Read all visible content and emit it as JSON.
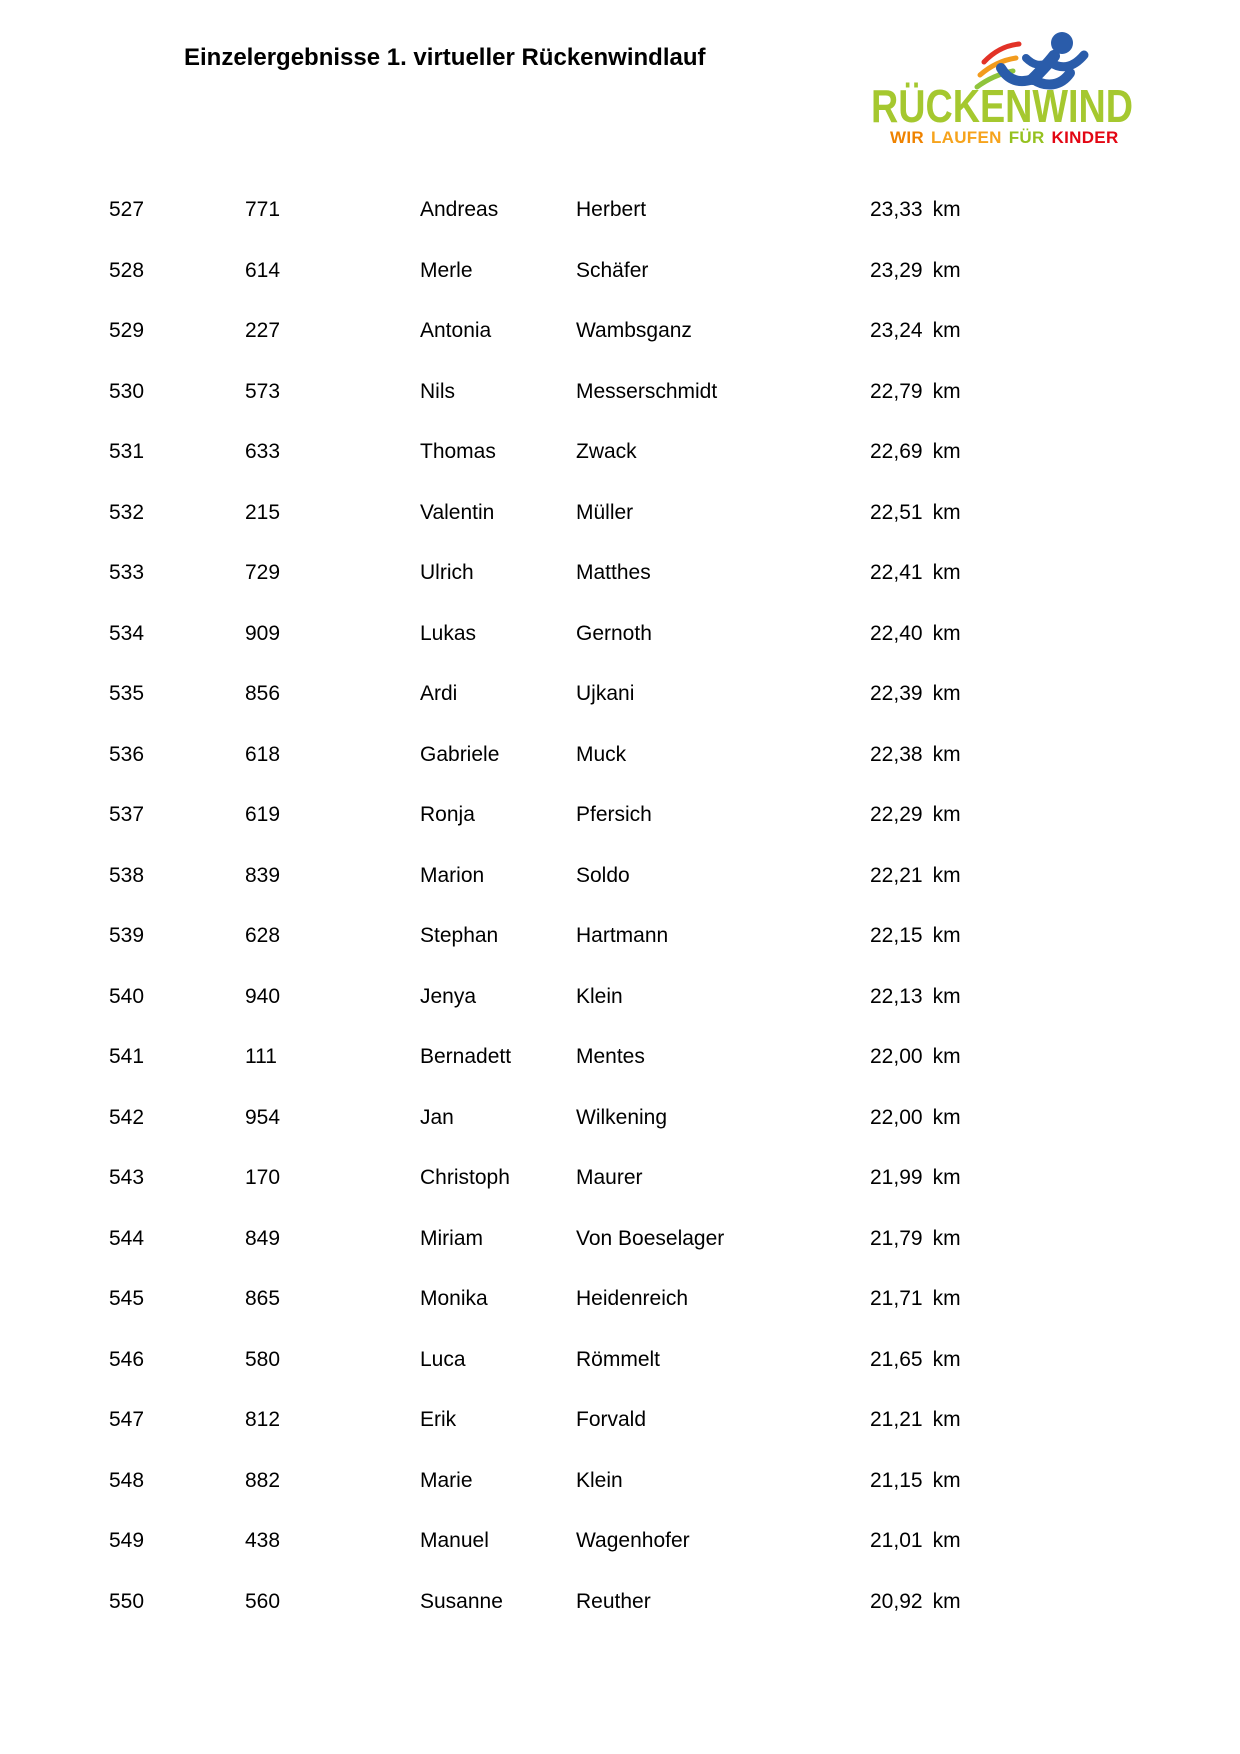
{
  "page": {
    "title": "Einzelergebnisse 1. virtueller Rückenwindlauf"
  },
  "logo": {
    "brand": "RÜCKENWIND",
    "brand_color": "#a5c82f",
    "runner_color": "#2a5caa",
    "speed_line_colors": [
      "#e23227",
      "#f29b1d",
      "#8fc43c"
    ],
    "tagline": [
      {
        "text": "WIR",
        "color": "#ef8200"
      },
      {
        "text": "LAUFEN",
        "color": "#f6a31c"
      },
      {
        "text": "FÜR",
        "color": "#95c11f"
      },
      {
        "text": "KINDER",
        "color": "#e30613"
      }
    ]
  },
  "table": {
    "distance_unit": "km",
    "rows": [
      {
        "rank": "527",
        "bib": "771",
        "first_name": "Andreas",
        "last_name": "Herbert",
        "distance": "23,33"
      },
      {
        "rank": "528",
        "bib": "614",
        "first_name": "Merle",
        "last_name": "Schäfer",
        "distance": "23,29"
      },
      {
        "rank": "529",
        "bib": "227",
        "first_name": "Antonia",
        "last_name": "Wambsganz",
        "distance": "23,24"
      },
      {
        "rank": "530",
        "bib": "573",
        "first_name": "Nils",
        "last_name": "Messerschmidt",
        "distance": "22,79"
      },
      {
        "rank": "531",
        "bib": "633",
        "first_name": "Thomas",
        "last_name": "Zwack",
        "distance": "22,69"
      },
      {
        "rank": "532",
        "bib": "215",
        "first_name": "Valentin",
        "last_name": "Müller",
        "distance": "22,51"
      },
      {
        "rank": "533",
        "bib": "729",
        "first_name": "Ulrich",
        "last_name": "Matthes",
        "distance": "22,41"
      },
      {
        "rank": "534",
        "bib": "909",
        "first_name": "Lukas",
        "last_name": "Gernoth",
        "distance": "22,40"
      },
      {
        "rank": "535",
        "bib": "856",
        "first_name": "Ardi",
        "last_name": "Ujkani",
        "distance": "22,39"
      },
      {
        "rank": "536",
        "bib": "618",
        "first_name": "Gabriele",
        "last_name": "Muck",
        "distance": "22,38"
      },
      {
        "rank": "537",
        "bib": "619",
        "first_name": "Ronja",
        "last_name": "Pfersich",
        "distance": "22,29"
      },
      {
        "rank": "538",
        "bib": "839",
        "first_name": "Marion",
        "last_name": "Soldo",
        "distance": "22,21"
      },
      {
        "rank": "539",
        "bib": "628",
        "first_name": "Stephan",
        "last_name": "Hartmann",
        "distance": "22,15"
      },
      {
        "rank": "540",
        "bib": "940",
        "first_name": "Jenya",
        "last_name": "Klein",
        "distance": "22,13"
      },
      {
        "rank": "541",
        "bib": "111",
        "first_name": "Bernadett",
        "last_name": "Mentes",
        "distance": "22,00"
      },
      {
        "rank": "542",
        "bib": "954",
        "first_name": "Jan",
        "last_name": "Wilkening",
        "distance": "22,00"
      },
      {
        "rank": "543",
        "bib": "170",
        "first_name": "Christoph",
        "last_name": "Maurer",
        "distance": "21,99"
      },
      {
        "rank": "544",
        "bib": "849",
        "first_name": "Miriam",
        "last_name": "Von Boeselager",
        "distance": "21,79"
      },
      {
        "rank": "545",
        "bib": "865",
        "first_name": "Monika",
        "last_name": "Heidenreich",
        "distance": "21,71"
      },
      {
        "rank": "546",
        "bib": "580",
        "first_name": "Luca",
        "last_name": "Römmelt",
        "distance": "21,65"
      },
      {
        "rank": "547",
        "bib": "812",
        "first_name": "Erik",
        "last_name": "Forvald",
        "distance": "21,21"
      },
      {
        "rank": "548",
        "bib": "882",
        "first_name": "Marie",
        "last_name": "Klein",
        "distance": "21,15"
      },
      {
        "rank": "549",
        "bib": "438",
        "first_name": "Manuel",
        "last_name": "Wagenhofer",
        "distance": "21,01"
      },
      {
        "rank": "550",
        "bib": "560",
        "first_name": "Susanne",
        "last_name": "Reuther",
        "distance": "20,92"
      }
    ]
  }
}
